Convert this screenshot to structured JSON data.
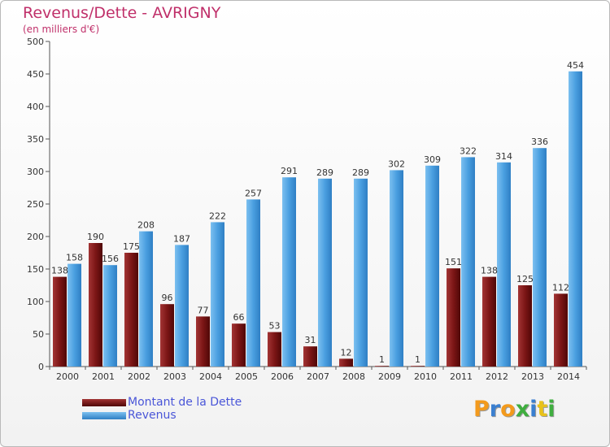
{
  "title": "Revenus/Dette - AVRIGNY",
  "subtitle": "(en milliers d'€)",
  "chart_data": {
    "type": "bar",
    "categories": [
      "2000",
      "2001",
      "2002",
      "2003",
      "2004",
      "2005",
      "2006",
      "2007",
      "2008",
      "2009",
      "2010",
      "2011",
      "2012",
      "2013",
      "2014"
    ],
    "series": [
      {
        "name": "Montant de la Dette",
        "color": "#7a1010",
        "values": [
          138,
          190,
          175,
          96,
          77,
          66,
          53,
          31,
          12,
          1,
          1,
          151,
          138,
          125,
          112
        ]
      },
      {
        "name": "Revenus",
        "color": "#4a9fe0",
        "values": [
          158,
          156,
          208,
          187,
          222,
          257,
          291,
          289,
          289,
          302,
          309,
          322,
          314,
          336,
          454
        ]
      }
    ],
    "ylim": [
      0,
      500
    ],
    "yticks": [
      0,
      50,
      100,
      150,
      200,
      250,
      300,
      350,
      400,
      450,
      500
    ],
    "grid": false,
    "legend_position": "bottom-left"
  },
  "legend": {
    "debt_label": "Montant de la Dette",
    "revenue_label": "Revenus"
  },
  "logo": {
    "text": "Proxiti",
    "letter_colors": [
      "#f39a1c",
      "#3a7fd0",
      "#f39a1c",
      "#3fae3f",
      "#3a7fd0",
      "#e8c21a",
      "#3fae3f"
    ]
  }
}
